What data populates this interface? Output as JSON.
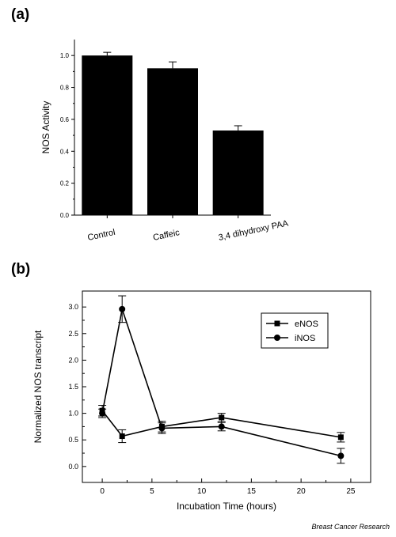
{
  "panel_labels": [
    "(a)",
    "(b)"
  ],
  "credit": "Breast Cancer Research",
  "chart_data": [
    {
      "type": "bar",
      "categories": [
        "Control",
        "Caffeic",
        "3,4 dihydroxy PAA"
      ],
      "values": [
        1.0,
        0.92,
        0.53
      ],
      "errors": [
        0.02,
        0.04,
        0.03
      ],
      "ylabel": "NOS Activity",
      "xlabel": "",
      "ylim": [
        0,
        1.1
      ],
      "yticks": [
        "0.0",
        "0.2",
        "0.4",
        "0.6",
        "0.8",
        "1.0"
      ],
      "bar_color": "#000000"
    },
    {
      "type": "line",
      "xlabel": "Incubation Time (hours)",
      "ylabel": "Normalized NOS transcript",
      "xlim": [
        -2,
        27
      ],
      "ylim": [
        -0.3,
        3.3
      ],
      "xticks": [
        "0",
        "5",
        "10",
        "15",
        "20",
        "25"
      ],
      "yticks": [
        "0.0",
        "0.5",
        "1.0",
        "1.5",
        "2.0",
        "2.5",
        "3.0"
      ],
      "legend_position": "top-right",
      "series": [
        {
          "name": "eNOS",
          "marker": "square",
          "x": [
            0,
            2,
            6,
            12,
            24
          ],
          "y": [
            1.05,
            0.57,
            0.75,
            0.92,
            0.55
          ],
          "err": [
            0.1,
            0.12,
            0.1,
            0.08,
            0.09
          ]
        },
        {
          "name": "iNOS",
          "marker": "circle",
          "x": [
            0,
            2,
            6,
            12,
            24
          ],
          "y": [
            1.0,
            2.96,
            0.72,
            0.75,
            0.2
          ],
          "err": [
            0.08,
            0.25,
            0.1,
            0.08,
            0.14
          ]
        }
      ]
    }
  ]
}
